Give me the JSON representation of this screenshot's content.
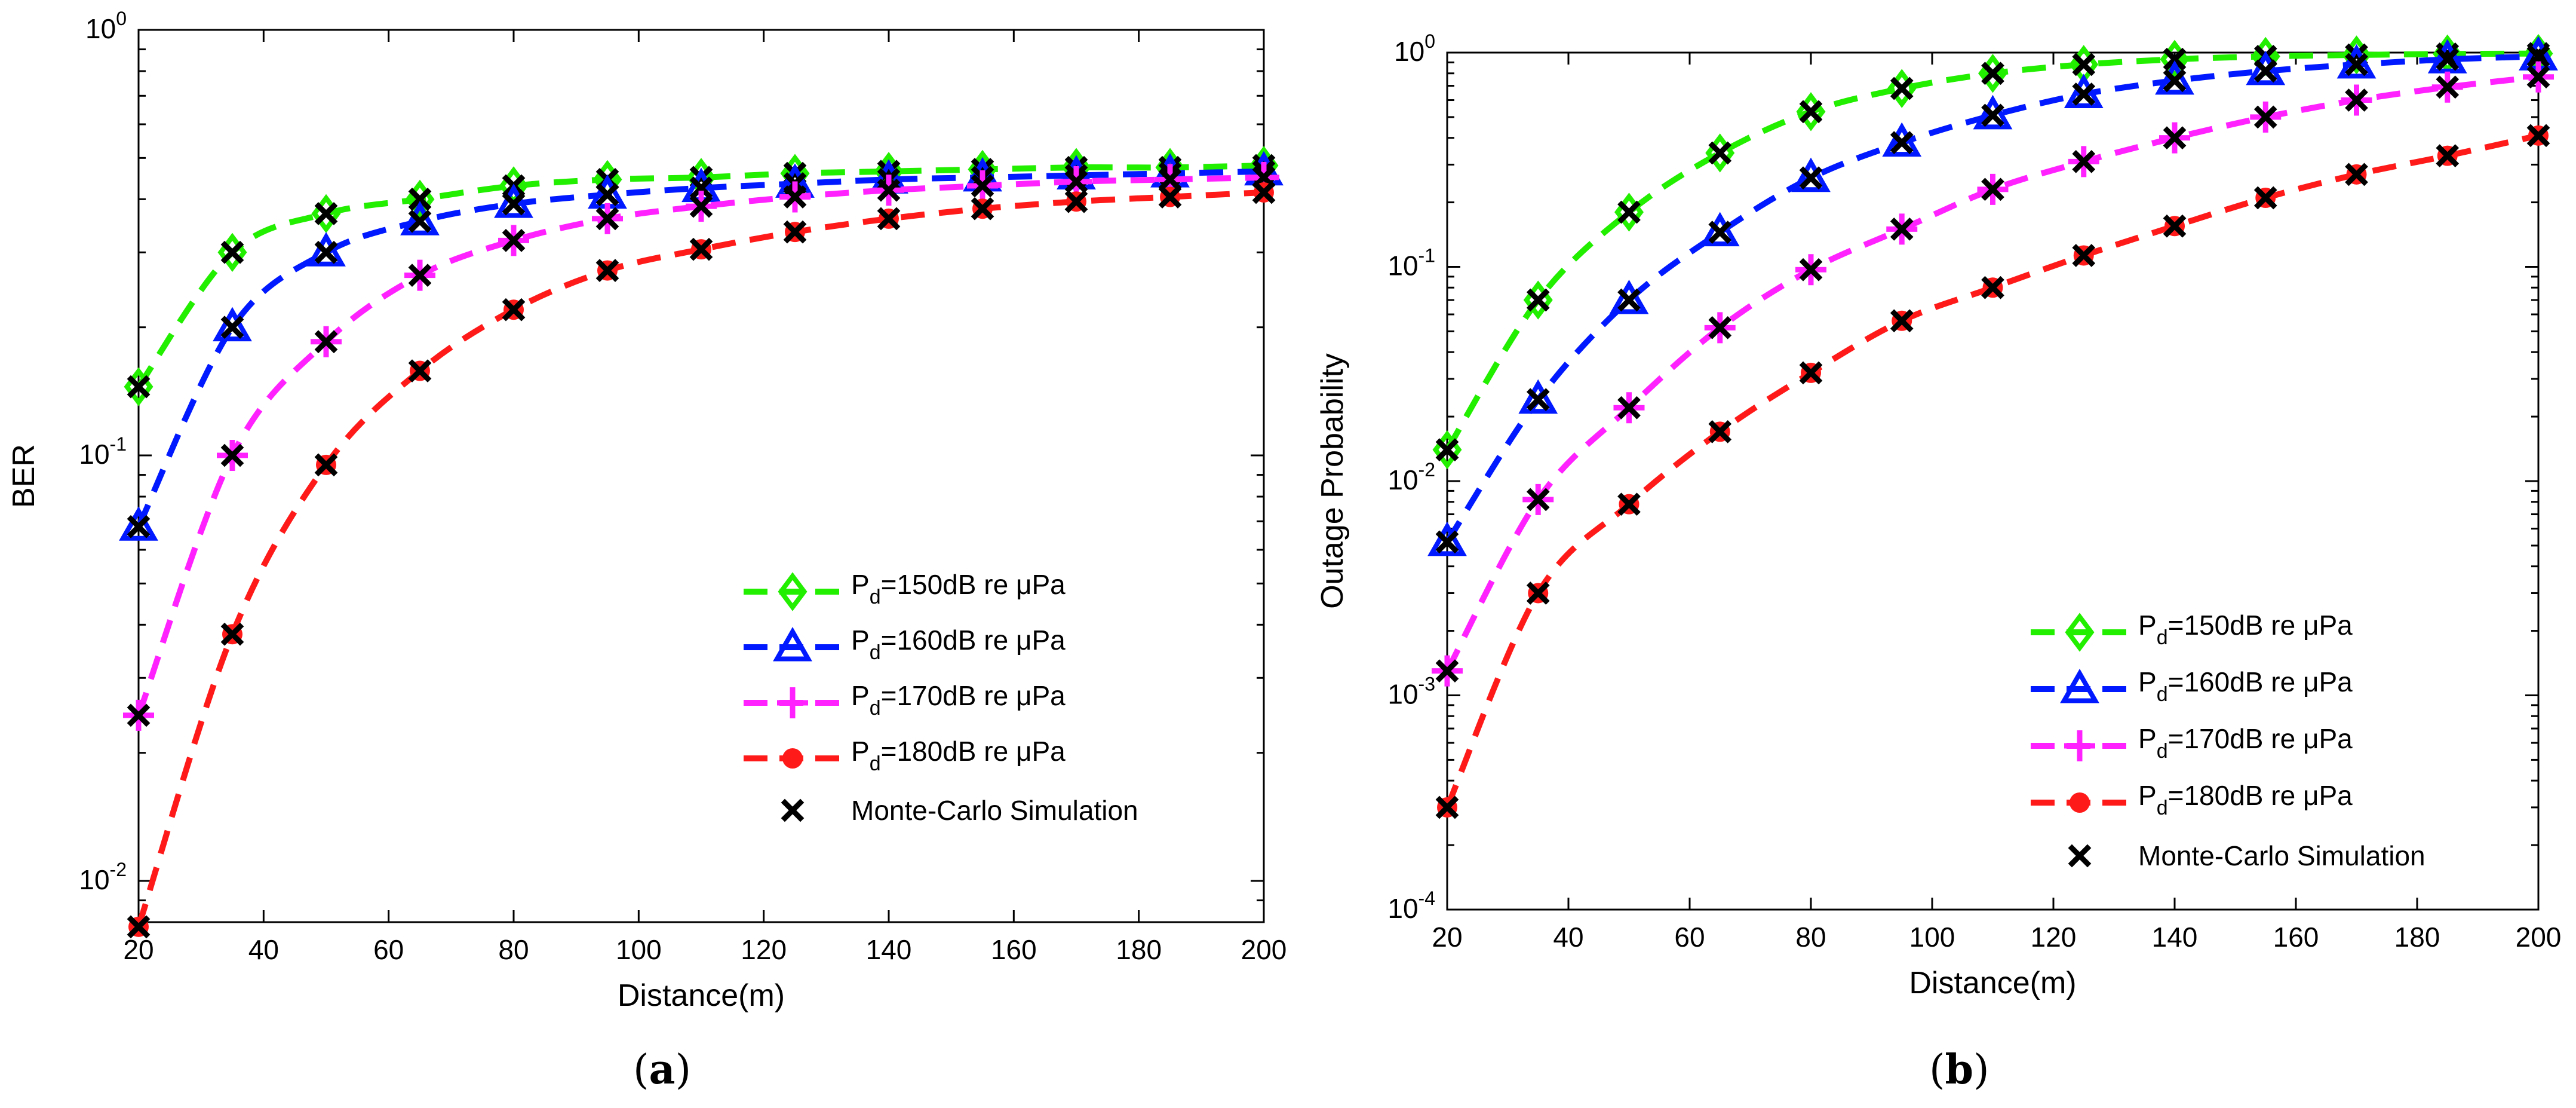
{
  "panels": [
    {
      "label_open": "(",
      "label_letter": "a",
      "label_close": ")"
    },
    {
      "label_open": "(",
      "label_letter": "b",
      "label_close": ")"
    }
  ],
  "chart_data": [
    {
      "type": "line",
      "yscale": "log",
      "xlabel": "Distance(m)",
      "ylabel": "BER",
      "xlim": [
        20,
        200
      ],
      "ylim": [
        0.008,
        1
      ],
      "xticks": [
        20,
        40,
        60,
        80,
        100,
        120,
        140,
        160,
        180,
        200
      ],
      "yticks": [
        {
          "base": "10",
          "exp": "-2",
          "value": 0.01
        },
        {
          "base": "10",
          "exp": "-1",
          "value": 0.1
        },
        {
          "base": "10",
          "exp": "0",
          "value": 1
        }
      ],
      "grid": false,
      "legend_position": "bottom-right",
      "x": [
        20,
        35,
        50,
        65,
        80,
        95,
        110,
        125,
        140,
        155,
        170,
        185,
        200
      ],
      "series": [
        {
          "name_prefix": "P",
          "name_sub": "d",
          "name_suffix": "=150dB re μPa",
          "color": "#22ee00",
          "marker": "diamond",
          "values": [
            0.145,
            0.3,
            0.37,
            0.4,
            0.43,
            0.445,
            0.45,
            0.46,
            0.465,
            0.47,
            0.475,
            0.475,
            0.48
          ]
        },
        {
          "name_prefix": "P",
          "name_sub": "d",
          "name_suffix": "=160dB re μPa",
          "color": "#0019ff",
          "marker": "triangle",
          "values": [
            0.068,
            0.2,
            0.3,
            0.355,
            0.39,
            0.41,
            0.425,
            0.435,
            0.445,
            0.45,
            0.455,
            0.46,
            0.465
          ]
        },
        {
          "name_prefix": "P",
          "name_sub": "d",
          "name_suffix": "=170dB re μPa",
          "color": "#ff22ff",
          "marker": "plus",
          "values": [
            0.0245,
            0.1,
            0.185,
            0.265,
            0.32,
            0.36,
            0.385,
            0.405,
            0.42,
            0.43,
            0.44,
            0.445,
            0.45
          ]
        },
        {
          "name_prefix": "P",
          "name_sub": "d",
          "name_suffix": "=180dB re μPa",
          "color": "#ff1a1a",
          "marker": "circle",
          "values": [
            0.0078,
            0.038,
            0.095,
            0.158,
            0.22,
            0.272,
            0.305,
            0.335,
            0.36,
            0.38,
            0.395,
            0.405,
            0.415
          ]
        }
      ],
      "monte_carlo_label": "Monte-Carlo Simulation"
    },
    {
      "type": "line",
      "yscale": "log",
      "xlabel": "Distance(m)",
      "ylabel": "Outage Probability",
      "xlim": [
        20,
        200
      ],
      "ylim": [
        0.0001,
        1
      ],
      "xticks": [
        20,
        40,
        60,
        80,
        100,
        120,
        140,
        160,
        180,
        200
      ],
      "yticks": [
        {
          "base": "10",
          "exp": "-4",
          "value": 0.0001
        },
        {
          "base": "10",
          "exp": "-3",
          "value": 0.001
        },
        {
          "base": "10",
          "exp": "-2",
          "value": 0.01
        },
        {
          "base": "10",
          "exp": "-1",
          "value": 0.1
        },
        {
          "base": "10",
          "exp": "0",
          "value": 1
        }
      ],
      "grid": false,
      "legend_position": "bottom-right",
      "x": [
        20,
        35,
        50,
        65,
        80,
        95,
        110,
        125,
        140,
        155,
        170,
        185,
        200
      ],
      "series": [
        {
          "name_prefix": "P",
          "name_sub": "d",
          "name_suffix": "=150dB re μPa",
          "color": "#22ee00",
          "marker": "diamond",
          "values": [
            0.014,
            0.07,
            0.18,
            0.34,
            0.53,
            0.68,
            0.8,
            0.88,
            0.93,
            0.96,
            0.975,
            0.985,
            0.99
          ]
        },
        {
          "name_prefix": "P",
          "name_sub": "d",
          "name_suffix": "=160dB re μPa",
          "color": "#0019ff",
          "marker": "triangle",
          "values": [
            0.0052,
            0.024,
            0.07,
            0.145,
            0.26,
            0.38,
            0.51,
            0.64,
            0.74,
            0.82,
            0.88,
            0.93,
            0.96
          ]
        },
        {
          "name_prefix": "P",
          "name_sub": "d",
          "name_suffix": "=170dB re μPa",
          "color": "#ff22ff",
          "marker": "plus",
          "values": [
            0.0013,
            0.0082,
            0.022,
            0.052,
            0.097,
            0.15,
            0.23,
            0.31,
            0.4,
            0.5,
            0.6,
            0.69,
            0.77
          ]
        },
        {
          "name_prefix": "P",
          "name_sub": "d",
          "name_suffix": "=180dB re μPa",
          "color": "#ff1a1a",
          "marker": "circle",
          "values": [
            0.0003,
            0.003,
            0.0078,
            0.017,
            0.032,
            0.056,
            0.08,
            0.113,
            0.155,
            0.21,
            0.27,
            0.33,
            0.41
          ]
        }
      ],
      "monte_carlo_label": "Monte-Carlo Simulation"
    }
  ]
}
